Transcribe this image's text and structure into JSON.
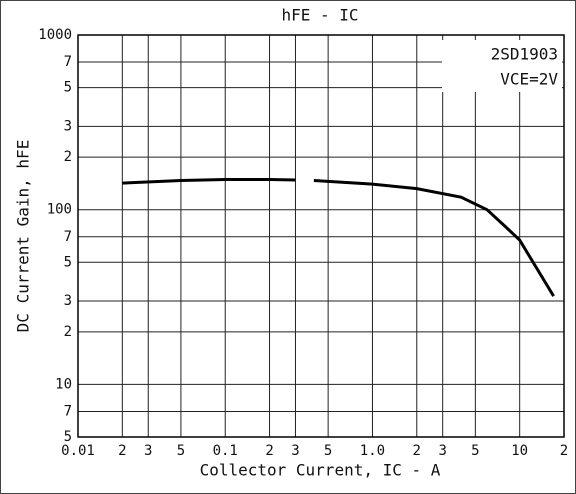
{
  "chart_data": {
    "type": "line",
    "title": "hFE - IC",
    "xlabel": "Collector Current, IC - A",
    "ylabel": "DC Current Gain, hFE",
    "annotations": [
      "2SD1903",
      "VCE=2V"
    ],
    "xlog": true,
    "ylog": true,
    "grid": true,
    "xlim": [
      0.01,
      20
    ],
    "ylim": [
      5,
      1000
    ],
    "xticks": [
      0.01,
      {
        "value": 0.02,
        "label": "2"
      },
      {
        "value": 0.03,
        "label": "3"
      },
      {
        "value": 0.05,
        "label": "5"
      },
      0.1,
      {
        "value": 0.2,
        "label": "2"
      },
      {
        "value": 0.3,
        "label": "3"
      },
      {
        "value": 0.5,
        "label": "5"
      },
      {
        "value": 1,
        "label": "1.0"
      },
      2,
      3,
      5,
      10,
      {
        "value": 20,
        "label": "2"
      }
    ],
    "yticks": [
      1000,
      {
        "value": 700,
        "label": "7"
      },
      {
        "value": 500,
        "label": "5"
      },
      {
        "value": 300,
        "label": "3"
      },
      {
        "value": 200,
        "label": "2"
      },
      100,
      {
        "value": 70,
        "label": "7"
      },
      {
        "value": 50,
        "label": "5"
      },
      {
        "value": 30,
        "label": "3"
      },
      {
        "value": 20,
        "label": "2"
      },
      10,
      7,
      5
    ],
    "x": [
      0.02,
      0.05,
      0.1,
      0.2,
      0.3,
      0.35,
      0.4,
      1,
      2,
      4,
      6,
      8,
      10,
      17
    ],
    "series": [
      {
        "name": "hFE",
        "color": "#000000",
        "values": [
          142,
          147,
          149,
          149,
          148,
          null,
          147,
          140,
          132,
          118,
          100,
          80,
          67,
          32
        ]
      }
    ]
  }
}
